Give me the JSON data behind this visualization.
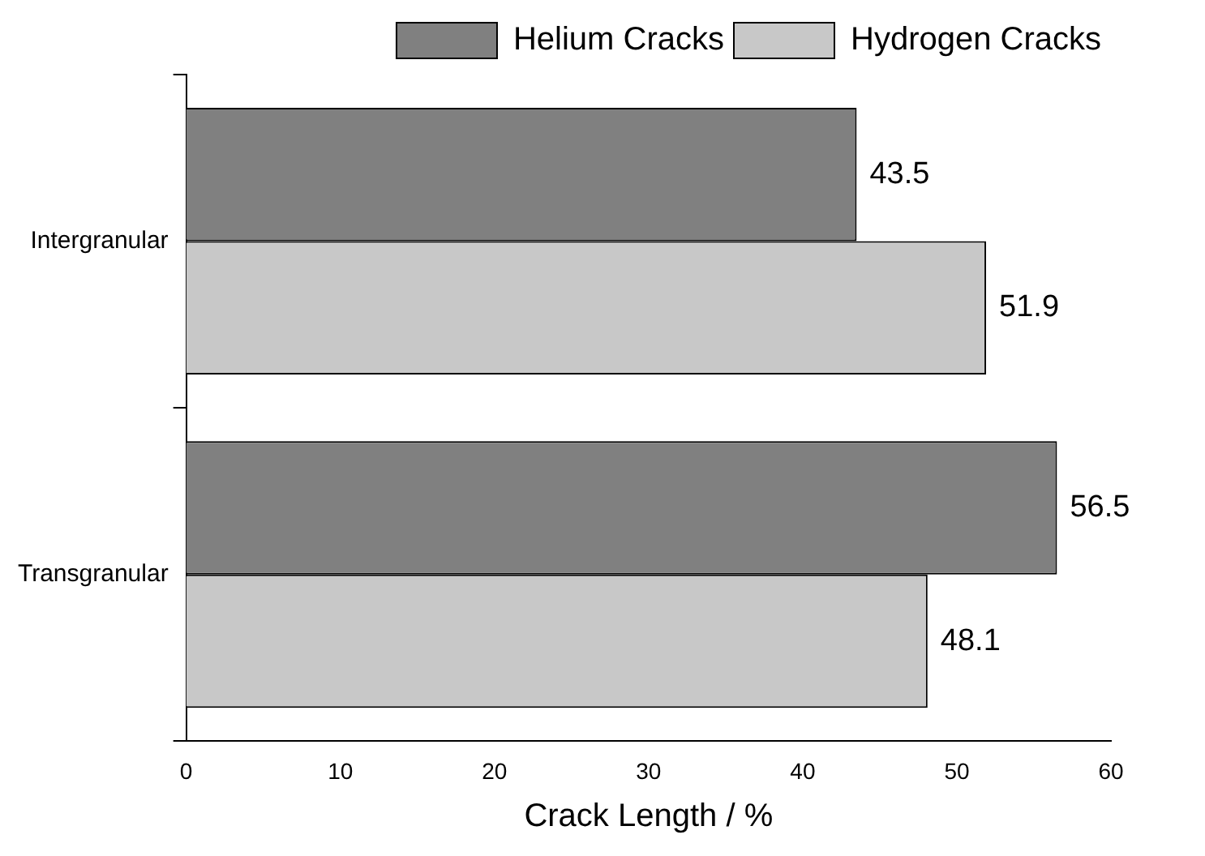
{
  "chart_data": {
    "type": "bar",
    "orientation": "horizontal",
    "xlabel": "Crack Length / %",
    "categories": [
      "Intergranular",
      "Transgranular"
    ],
    "series": [
      {
        "name": "Helium Cracks",
        "color": "#808080",
        "values": [
          43.5,
          56.5
        ]
      },
      {
        "name": "Hydrogen Cracks",
        "color": "#c8c8c8",
        "values": [
          51.9,
          48.1
        ]
      }
    ],
    "xlim": [
      0,
      60
    ],
    "xticks": [
      0,
      10,
      20,
      30,
      40,
      50,
      60
    ],
    "data_labels": true,
    "legend": "top right",
    "grid": false
  }
}
